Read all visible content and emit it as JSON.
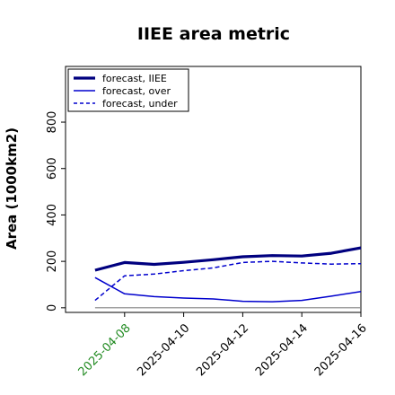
{
  "chart_data": {
    "type": "line",
    "title": "IIEE area metric",
    "ylabel": "Area (1000km2)",
    "xlabel": "",
    "x": [
      "2025-04-07",
      "2025-04-08",
      "2025-04-09",
      "2025-04-10",
      "2025-04-11",
      "2025-04-12",
      "2025-04-13",
      "2025-04-14",
      "2025-04-15",
      "2025-04-16"
    ],
    "xlim": [
      "2025-04-06",
      "2025-04-16"
    ],
    "ylim": [
      -20,
      1040
    ],
    "yticks": [
      0,
      200,
      400,
      600,
      800
    ],
    "xticks": [
      {
        "label": "2025-04-08",
        "date": "2025-04-08",
        "color": "#228b22"
      },
      {
        "label": "2025-04-10",
        "date": "2025-04-10",
        "color": "#000000"
      },
      {
        "label": "2025-04-12",
        "date": "2025-04-12",
        "color": "#000000"
      },
      {
        "label": "2025-04-14",
        "date": "2025-04-14",
        "color": "#000000"
      },
      {
        "label": "2025-04-16",
        "date": "2025-04-16",
        "color": "#000000"
      }
    ],
    "legend_position": "top-left",
    "series": [
      {
        "name": "forecast, IIEE",
        "style": "solid-thick",
        "color": "#00007f",
        "values": [
          162,
          195,
          187,
          196,
          207,
          220,
          225,
          223,
          235,
          258
        ]
      },
      {
        "name": "forecast, over",
        "style": "solid",
        "color": "#0000cd",
        "values": [
          130,
          60,
          48,
          42,
          38,
          28,
          26,
          32,
          50,
          70
        ]
      },
      {
        "name": "forecast, under",
        "style": "dashed",
        "color": "#0000cd",
        "values": [
          32,
          138,
          145,
          160,
          172,
          195,
          200,
          193,
          188,
          190
        ]
      }
    ],
    "baseline": {
      "y": 0,
      "color": "#808080",
      "x_from": "2025-04-07",
      "x_to": "2025-04-16"
    },
    "grid": false
  }
}
